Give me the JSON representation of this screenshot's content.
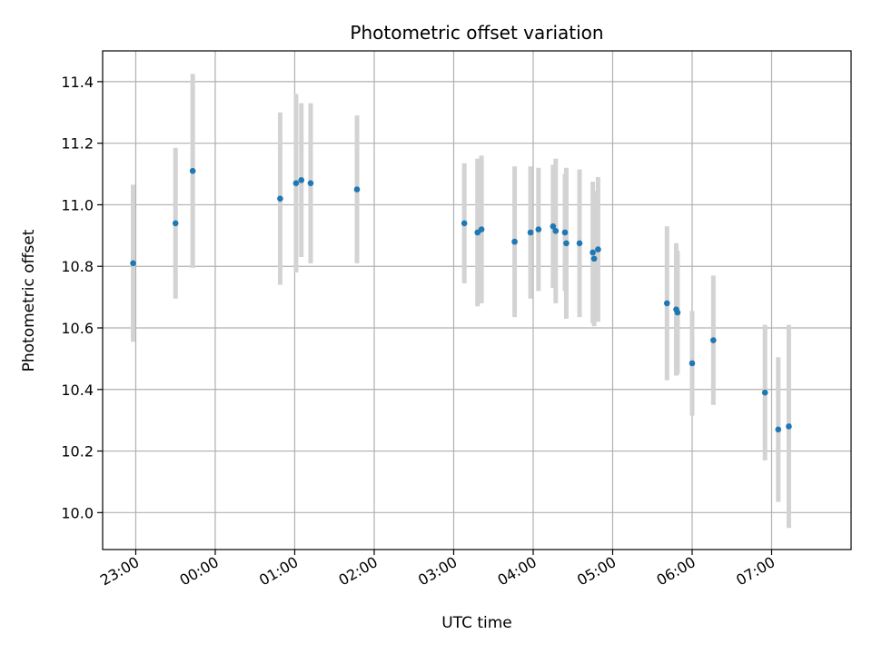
{
  "chart_data": {
    "type": "scatter",
    "title": "Photometric offset variation",
    "xlabel": "UTC time",
    "ylabel": "Photometric offset",
    "x_tick_labels": [
      "23:00",
      "00:00",
      "01:00",
      "02:00",
      "03:00",
      "04:00",
      "05:00",
      "06:00",
      "07:00"
    ],
    "y_tick_labels": [
      "10.0",
      "10.2",
      "10.4",
      "10.6",
      "10.8",
      "11.0",
      "11.2",
      "11.4"
    ],
    "grid": true,
    "colors": {
      "points": "#1f77b4",
      "errorbars": "#d3d3d3",
      "grid": "#b0b0b0"
    },
    "series": [
      {
        "x": [
          "22:58",
          "23:30",
          "23:43",
          "00:49",
          "01:01",
          "01:05",
          "01:12",
          "01:47",
          "03:08",
          "03:18",
          "03:21",
          "03:46",
          "03:58",
          "04:04",
          "04:15",
          "04:17",
          "04:24",
          "04:25",
          "04:35",
          "04:45",
          "04:46",
          "04:49",
          "05:41",
          "05:48",
          "05:49",
          "06:00",
          "06:16",
          "06:55",
          "07:05",
          "07:13"
        ],
        "y": [
          10.81,
          10.94,
          11.11,
          11.02,
          11.07,
          11.08,
          11.07,
          11.05,
          10.94,
          10.91,
          10.92,
          10.88,
          10.91,
          10.92,
          10.93,
          10.915,
          10.91,
          10.875,
          10.875,
          10.845,
          10.825,
          10.855,
          10.68,
          10.66,
          10.65,
          10.485,
          10.56,
          10.39,
          10.27,
          10.28
        ],
        "yerr": [
          0.255,
          0.245,
          0.315,
          0.28,
          0.29,
          0.25,
          0.26,
          0.24,
          0.195,
          0.24,
          0.24,
          0.245,
          0.215,
          0.2,
          0.2,
          0.235,
          0.19,
          0.245,
          0.24,
          0.23,
          0.22,
          0.235,
          0.25,
          0.215,
          0.2,
          0.17,
          0.21,
          0.22,
          0.235,
          0.33
        ]
      }
    ],
    "xlim": [
      "22:35",
      "08:00"
    ],
    "ylim": [
      9.88,
      11.5
    ]
  }
}
